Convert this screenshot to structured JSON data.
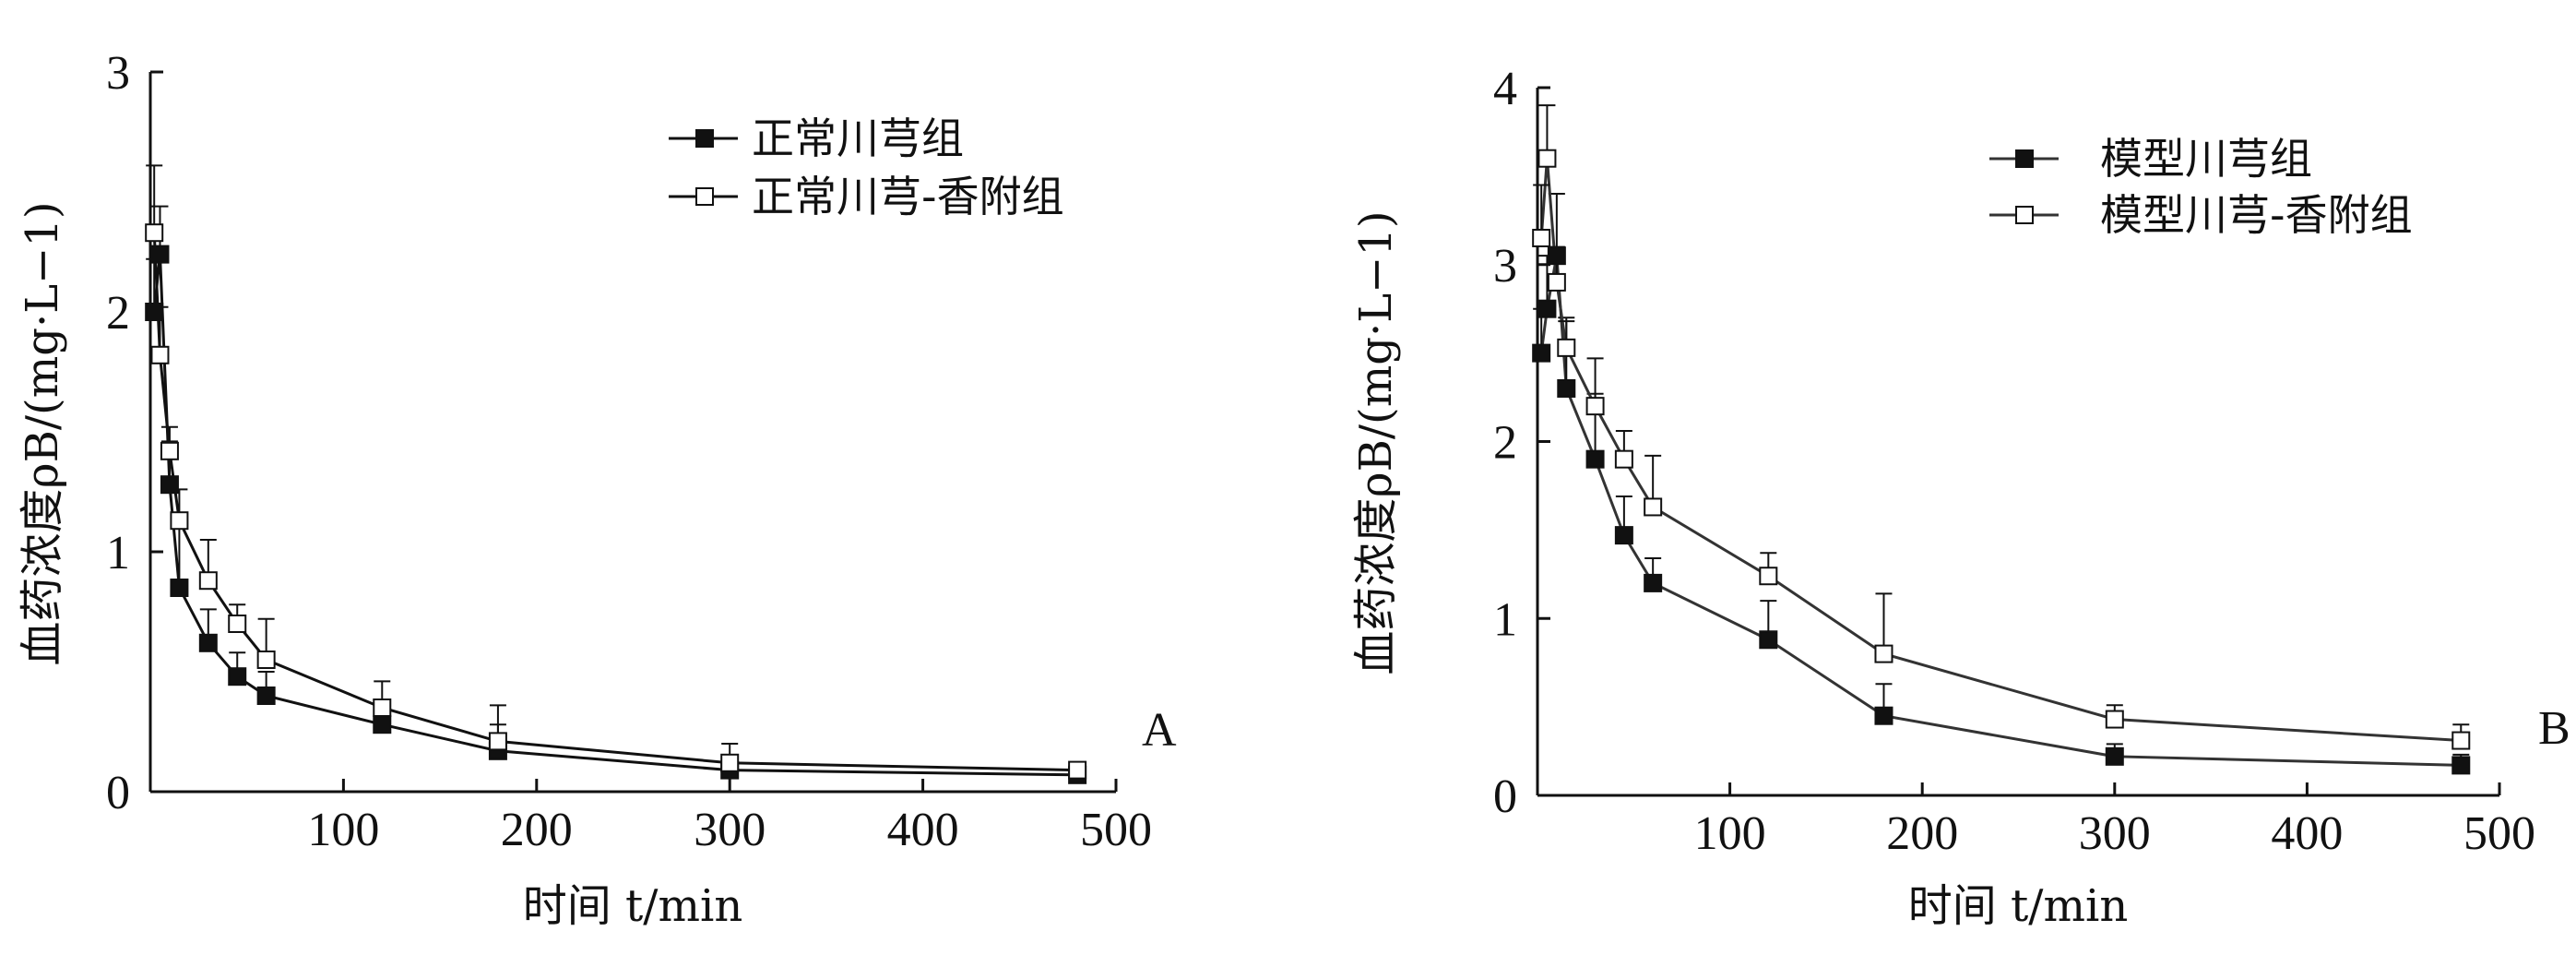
{
  "chart_data": [
    {
      "panel": "A",
      "type": "line",
      "xlabel": "时间 t/min",
      "ylabel": "血药浓度ρB/(mg·L−1)",
      "xlim": [
        0,
        500
      ],
      "ylim": [
        0,
        3
      ],
      "xticks": [
        100,
        200,
        300,
        400,
        500
      ],
      "yticks": [
        0,
        1,
        2,
        3
      ],
      "legend_position": "top-right",
      "grid": false,
      "series": [
        {
          "name": "正常川芎组",
          "marker": "filled-square",
          "color": "#111111",
          "points": [
            {
              "x": 2,
              "y": 2.0,
              "err": 0.22
            },
            {
              "x": 5,
              "y": 2.24,
              "err": 0.2
            },
            {
              "x": 10,
              "y": 1.28,
              "err": 0.18
            },
            {
              "x": 15,
              "y": 0.85,
              "err": 0.3
            },
            {
              "x": 30,
              "y": 0.62,
              "err": 0.14
            },
            {
              "x": 45,
              "y": 0.48,
              "err": 0.1
            },
            {
              "x": 60,
              "y": 0.4,
              "err": 0.1
            },
            {
              "x": 120,
              "y": 0.28,
              "err": 0.1
            },
            {
              "x": 180,
              "y": 0.17,
              "err": 0.11
            },
            {
              "x": 300,
              "y": 0.09,
              "err": 0.05
            },
            {
              "x": 480,
              "y": 0.07,
              "err": 0.03
            }
          ]
        },
        {
          "name": "正常川芎-香附组",
          "marker": "open-square",
          "color": "#111111",
          "points": [
            {
              "x": 2,
              "y": 2.33,
              "err": 0.28
            },
            {
              "x": 5,
              "y": 1.82,
              "err": 0.2
            },
            {
              "x": 10,
              "y": 1.42,
              "err": 0.1
            },
            {
              "x": 15,
              "y": 1.13,
              "err": 0.13
            },
            {
              "x": 30,
              "y": 0.88,
              "err": 0.17
            },
            {
              "x": 45,
              "y": 0.7,
              "err": 0.08
            },
            {
              "x": 60,
              "y": 0.55,
              "err": 0.17
            },
            {
              "x": 120,
              "y": 0.35,
              "err": 0.11
            },
            {
              "x": 180,
              "y": 0.21,
              "err": 0.15
            },
            {
              "x": 300,
              "y": 0.12,
              "err": 0.08
            },
            {
              "x": 480,
              "y": 0.09,
              "err": 0.02
            }
          ]
        }
      ]
    },
    {
      "panel": "B",
      "type": "line",
      "xlabel": "时间 t/min",
      "ylabel": "血药浓度ρB/(mg·L−1)",
      "xlim": [
        0,
        500
      ],
      "ylim": [
        0,
        4
      ],
      "xticks": [
        100,
        200,
        300,
        400,
        500
      ],
      "yticks": [
        0,
        1,
        2,
        3,
        4
      ],
      "legend_position": "top-right",
      "grid": false,
      "series": [
        {
          "name": "模型川芎组",
          "marker": "filled-square",
          "color": "#333333",
          "points": [
            {
              "x": 2,
              "y": 2.5,
              "err": 0.25
            },
            {
              "x": 5,
              "y": 2.75,
              "err": 0.3
            },
            {
              "x": 10,
              "y": 3.05,
              "err": 0.35
            },
            {
              "x": 15,
              "y": 2.3,
              "err": 0.4
            },
            {
              "x": 30,
              "y": 1.9,
              "err": 0.37
            },
            {
              "x": 45,
              "y": 1.47,
              "err": 0.22
            },
            {
              "x": 60,
              "y": 1.2,
              "err": 0.14
            },
            {
              "x": 120,
              "y": 0.88,
              "err": 0.22
            },
            {
              "x": 180,
              "y": 0.45,
              "err": 0.18
            },
            {
              "x": 300,
              "y": 0.22,
              "err": 0.07
            },
            {
              "x": 480,
              "y": 0.17,
              "err": 0.06
            }
          ]
        },
        {
          "name": "模型川芎-香附组",
          "marker": "open-square",
          "color": "#333333",
          "points": [
            {
              "x": 2,
              "y": 3.15,
              "err": 0.3
            },
            {
              "x": 5,
              "y": 3.6,
              "err": 0.3
            },
            {
              "x": 10,
              "y": 2.9,
              "err": 0.2
            },
            {
              "x": 15,
              "y": 2.53,
              "err": 0.15
            },
            {
              "x": 30,
              "y": 2.2,
              "err": 0.27
            },
            {
              "x": 45,
              "y": 1.9,
              "err": 0.16
            },
            {
              "x": 60,
              "y": 1.63,
              "err": 0.29
            },
            {
              "x": 120,
              "y": 1.24,
              "err": 0.13
            },
            {
              "x": 180,
              "y": 0.8,
              "err": 0.34
            },
            {
              "x": 300,
              "y": 0.43,
              "err": 0.08
            },
            {
              "x": 480,
              "y": 0.31,
              "err": 0.09
            }
          ]
        }
      ]
    }
  ],
  "panel_labels": [
    "A",
    "B"
  ]
}
